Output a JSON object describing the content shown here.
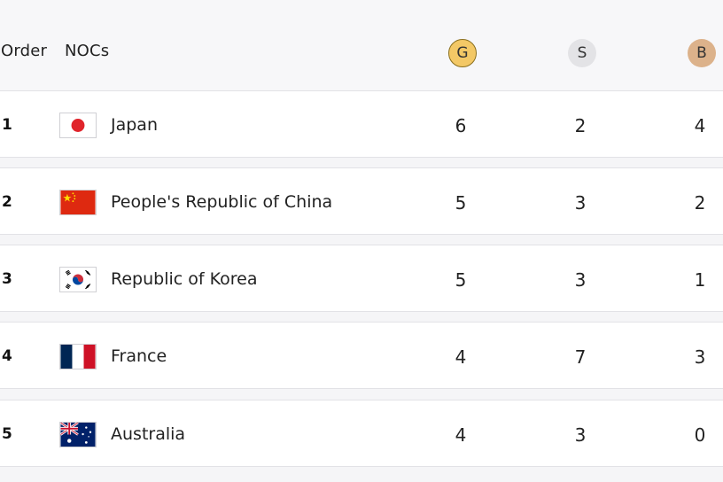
{
  "header": {
    "order_label": "Order",
    "nocs_label": "NOCs",
    "gold": {
      "label": "G",
      "color": "#f3c866"
    },
    "silver": {
      "label": "S",
      "color": "#e3e3e6"
    },
    "bronze": {
      "label": "B",
      "color": "#dcb28b"
    }
  },
  "rows": [
    {
      "order": "1",
      "noc": "Japan",
      "flag_icon": "japan-flag-icon",
      "gold": "6",
      "silver": "2",
      "bronze": "4"
    },
    {
      "order": "2",
      "noc": "People's Republic of China",
      "flag_icon": "china-flag-icon",
      "gold": "5",
      "silver": "3",
      "bronze": "2"
    },
    {
      "order": "3",
      "noc": "Republic of Korea",
      "flag_icon": "korea-flag-icon",
      "gold": "5",
      "silver": "3",
      "bronze": "1"
    },
    {
      "order": "4",
      "noc": "France",
      "flag_icon": "france-flag-icon",
      "gold": "4",
      "silver": "7",
      "bronze": "3"
    },
    {
      "order": "5",
      "noc": "Australia",
      "flag_icon": "australia-flag-icon",
      "gold": "4",
      "silver": "3",
      "bronze": "0"
    }
  ]
}
